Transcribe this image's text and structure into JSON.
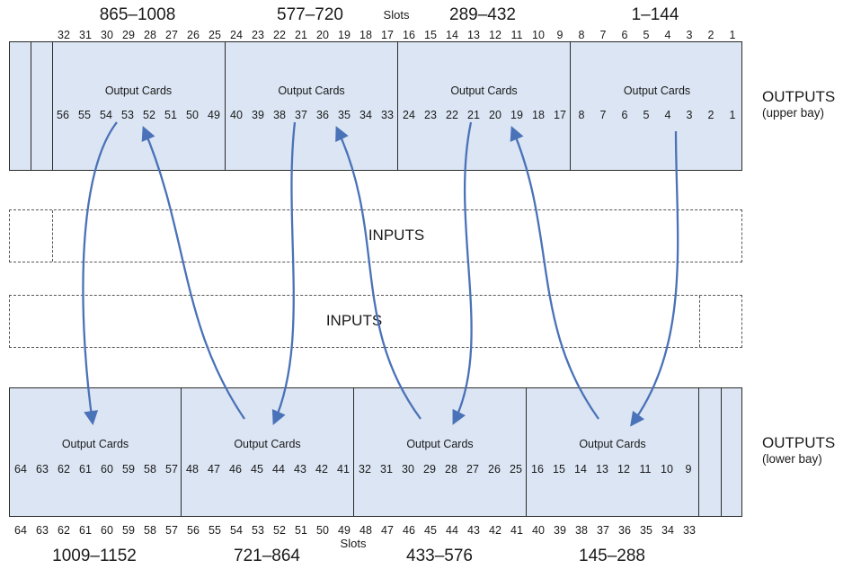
{
  "top": {
    "ranges": [
      "865–1008",
      "577–720",
      "289–432",
      "1–144"
    ],
    "slots_word": "Slots",
    "slot_numbers": [
      "32",
      "31",
      "30",
      "29",
      "28",
      "27",
      "26",
      "25",
      "24",
      "23",
      "22",
      "21",
      "20",
      "19",
      "18",
      "17",
      "16",
      "15",
      "14",
      "13",
      "12",
      "11",
      "10",
      "9",
      "8",
      "7",
      "6",
      "5",
      "4",
      "3",
      "2",
      "1"
    ]
  },
  "upper_bay": {
    "label": "OUTPUTS",
    "sublabel": "(upper bay)",
    "panels": [
      {
        "title": "Output Cards",
        "numbers": [
          "56",
          "55",
          "54",
          "53",
          "52",
          "51",
          "50",
          "49"
        ]
      },
      {
        "title": "Output Cards",
        "numbers": [
          "40",
          "39",
          "38",
          "37",
          "36",
          "35",
          "34",
          "33"
        ]
      },
      {
        "title": "Output Cards",
        "numbers": [
          "24",
          "23",
          "22",
          "21",
          "20",
          "19",
          "18",
          "17"
        ]
      },
      {
        "title": "Output Cards",
        "numbers": [
          "8",
          "7",
          "6",
          "5",
          "4",
          "3",
          "2",
          "1"
        ]
      }
    ]
  },
  "inputs": {
    "upper_label": "INPUTS",
    "lower_label": "INPUTS"
  },
  "lower_bay": {
    "label": "OUTPUTS",
    "sublabel": "(lower bay)",
    "panels": [
      {
        "title": "Output Cards",
        "numbers": [
          "64",
          "63",
          "62",
          "61",
          "60",
          "59",
          "58",
          "57"
        ]
      },
      {
        "title": "Output Cards",
        "numbers": [
          "48",
          "47",
          "46",
          "45",
          "44",
          "43",
          "42",
          "41"
        ]
      },
      {
        "title": "Output Cards",
        "numbers": [
          "32",
          "31",
          "30",
          "29",
          "28",
          "27",
          "26",
          "25"
        ]
      },
      {
        "title": "Output Cards",
        "numbers": [
          "16",
          "15",
          "14",
          "13",
          "12",
          "11",
          "10",
          "9"
        ]
      }
    ]
  },
  "bottom": {
    "ranges": [
      "1009–1152",
      "721–864",
      "433–576",
      "145–288"
    ],
    "slots_word": "Slots",
    "slot_numbers": [
      "64",
      "63",
      "62",
      "61",
      "60",
      "59",
      "58",
      "57",
      "56",
      "55",
      "54",
      "53",
      "52",
      "51",
      "50",
      "49",
      "48",
      "47",
      "46",
      "45",
      "44",
      "43",
      "42",
      "41",
      "40",
      "39",
      "38",
      "37",
      "36",
      "35",
      "34",
      "33"
    ]
  },
  "colors": {
    "card_fill": "#dbe5f3",
    "arrow": "#4a72b8",
    "border": "#2b2b2b"
  }
}
